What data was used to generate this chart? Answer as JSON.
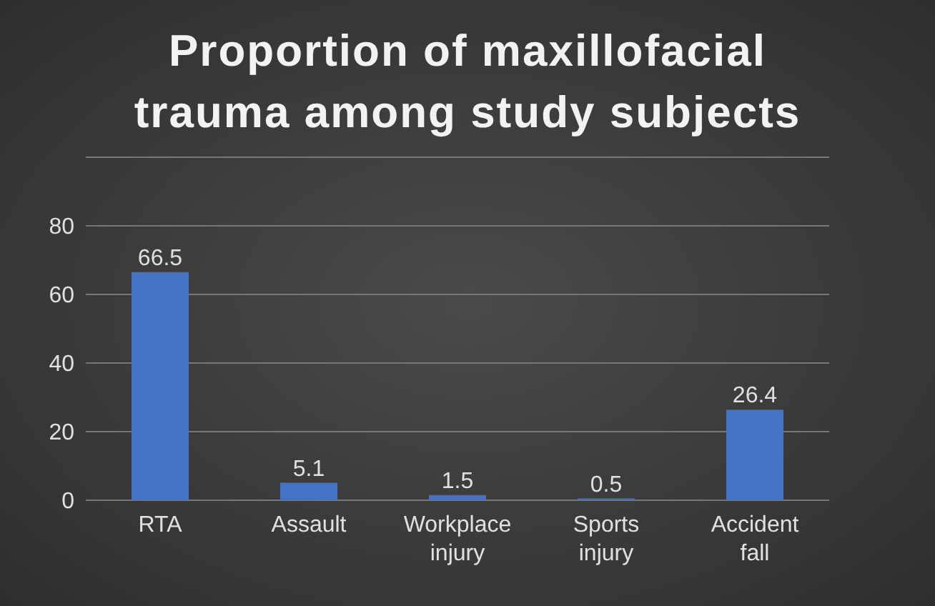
{
  "chart_data": {
    "type": "bar",
    "title": "Proportion of maxillofacial trauma among study subjects",
    "categories": [
      "RTA",
      "Assault",
      "Workplace injury",
      "Sports injury",
      "Accident fall"
    ],
    "values": [
      66.5,
      5.1,
      1.5,
      0.5,
      26.4
    ],
    "color": "#4472c4",
    "ylim": [
      0,
      100
    ],
    "yticks": [
      0,
      20,
      40,
      60,
      80,
      {
        "value": 100,
        "label": null
      }
    ],
    "grid": "y",
    "data_labels": true
  }
}
